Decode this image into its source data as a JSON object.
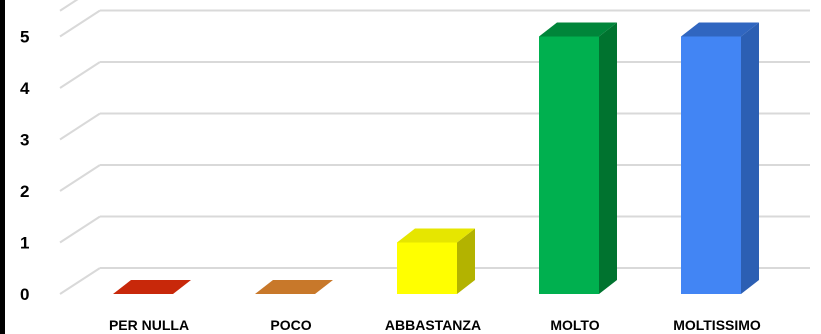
{
  "chart_data": {
    "type": "bar",
    "style": "3d-column",
    "categories": [
      "PER NULLA",
      "POCO",
      "ABBASTANZA",
      "MOLTO",
      "MOLTISSIMO"
    ],
    "values": [
      0,
      0,
      1,
      5,
      5
    ],
    "colors": [
      "#c8280a",
      "#c8782a",
      "#ffff00",
      "#00b04f",
      "#4285f4"
    ],
    "side_colors": [
      "#8a1a06",
      "#8a501a",
      "#b3b300",
      "#00732f",
      "#2c5fb3"
    ],
    "top_colors": [
      "#d94a2a",
      "#d9924a",
      "#e6e600",
      "#00853a",
      "#3066c0"
    ],
    "ylim": [
      0,
      5.5
    ],
    "yticks": [
      0,
      1,
      2,
      3,
      4,
      5
    ],
    "ytick_labels": [
      "0",
      "1",
      "2",
      "3",
      "4",
      "5"
    ],
    "grid": true,
    "legend": "none",
    "title": "",
    "xlabel": "",
    "ylabel": ""
  }
}
